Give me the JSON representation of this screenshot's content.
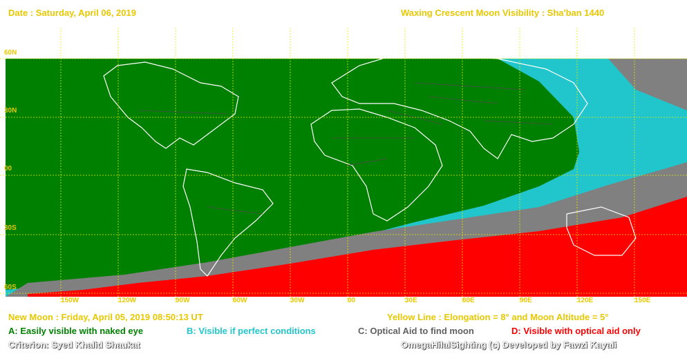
{
  "header": {
    "date": "Date : Saturday, April 06, 2019",
    "title": "Waxing Crescent Moon Visibility : Sha'ban 1440"
  },
  "map": {
    "lat_labels": [
      "60N",
      "30N",
      "00",
      "30S",
      "60S"
    ],
    "lon_labels": [
      "150W",
      "120W",
      "90W",
      "60W",
      "30W",
      "00",
      "30E",
      "60E",
      "90E",
      "120E",
      "150E"
    ],
    "colors": {
      "ocean": "#ffffff",
      "zone_a": "#008000",
      "zone_b": "#21c6cc",
      "zone_c": "#808080",
      "zone_d": "#ff0000",
      "grid": "#e8e800",
      "coast": "#ffffff"
    }
  },
  "footer": {
    "new_moon": "New Moon : Friday, April 05, 2019  08:50:13  UT",
    "yellow_line": "Yellow  Line : Elongation = 8° and Moon Altitude = 5°",
    "legend_a": "A: Easily visible with naked eye",
    "legend_b": "B: Visible if perfect conditions",
    "legend_c": "C: Optical Aid to find moon",
    "legend_d": "D: Visible with optical aid only",
    "criterion": "Criterion: Syed Khalid Shaukat",
    "credit": "OmegaHilalSighting  (c)  Developed by Fawzi Kayali"
  }
}
